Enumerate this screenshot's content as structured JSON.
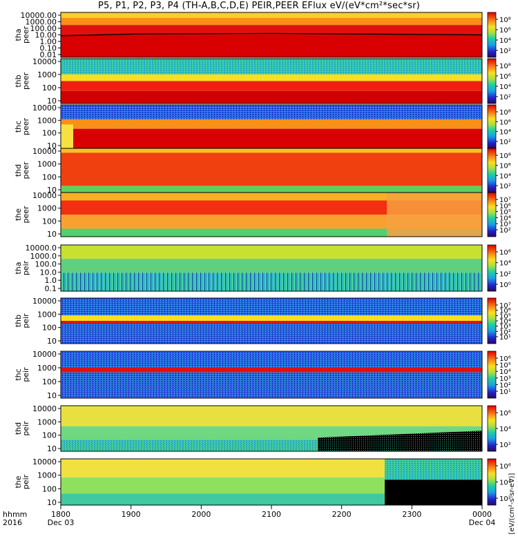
{
  "title": "P5, P1, P2, P3, P4 (TH-A,B,C,D,E) PEIR,PEER EFlux eV/(eV*cm²*sec*sr)",
  "time_axis": {
    "row_label_top": "hhmm",
    "row_label_bottom": "2016",
    "ticks": [
      "1800",
      "1900",
      "2000",
      "2100",
      "2200",
      "2300",
      "0000"
    ],
    "date_labels": [
      "Dec 03",
      "Dec 04"
    ]
  },
  "colorbar_unit": "[eV/(cm²-s-sr-eV)]",
  "chart_data": [
    {
      "type": "heatmap",
      "ylabel": [
        "tha",
        "peer"
      ],
      "yticks": [
        "10000.00",
        "1000.00",
        "100.00",
        "10.00",
        "1.00",
        "0.10",
        "0.01"
      ],
      "colorbar_ticks": [
        "10⁸",
        "10⁶",
        "10⁴",
        "10²"
      ]
    },
    {
      "type": "heatmap",
      "ylabel": [
        "thb",
        "peer"
      ],
      "yticks": [
        "10000",
        "1000",
        "100",
        "10"
      ],
      "colorbar_ticks": [
        "10⁸",
        "10⁶",
        "10⁴",
        "10²"
      ]
    },
    {
      "type": "heatmap",
      "ylabel": [
        "thc",
        "peer"
      ],
      "yticks": [
        "10000",
        "1000",
        "100",
        "10"
      ],
      "colorbar_ticks": [
        "10⁸",
        "10⁶",
        "10⁴",
        "10²"
      ]
    },
    {
      "type": "heatmap",
      "ylabel": [
        "thd",
        "peer"
      ],
      "yticks": [
        "10000",
        "1000",
        "100",
        "10"
      ],
      "colorbar_ticks": [
        "10⁸",
        "10⁶",
        "10⁴",
        "10²"
      ]
    },
    {
      "type": "heatmap",
      "ylabel": [
        "the",
        "peer"
      ],
      "yticks": [
        "10000",
        "1000",
        "100",
        "10"
      ],
      "colorbar_ticks": [
        "10⁷",
        "10⁶",
        "10⁵",
        "10⁴",
        "10³",
        "10²"
      ]
    },
    {
      "type": "heatmap",
      "ylabel": [
        "tha",
        "peir"
      ],
      "yticks": [
        "10000.0",
        "1000.0",
        "100.0",
        "10.0",
        "1.0",
        "0.1"
      ],
      "colorbar_ticks": [
        "10⁶",
        "10⁴",
        "10²",
        "10⁰"
      ]
    },
    {
      "type": "heatmap",
      "ylabel": [
        "thb",
        "peir"
      ],
      "yticks": [
        "10000",
        "1000",
        "100",
        "10"
      ],
      "colorbar_ticks": [
        "10⁷",
        "10⁶",
        "10⁵",
        "10⁴",
        "10³",
        "10²",
        "10¹"
      ]
    },
    {
      "type": "heatmap",
      "ylabel": [
        "thc",
        "peir"
      ],
      "yticks": [
        "10000",
        "1000",
        "100",
        "10"
      ],
      "colorbar_ticks": [
        "10⁶",
        "10⁵",
        "10⁴",
        "10³",
        "10²",
        "10¹"
      ]
    },
    {
      "type": "heatmap",
      "ylabel": [
        "thd",
        "peir"
      ],
      "yticks": [
        "10000",
        "1000",
        "100",
        "10"
      ],
      "colorbar_ticks": [
        "10⁶",
        "10⁴",
        "10²"
      ]
    },
    {
      "type": "heatmap",
      "ylabel": [
        "the",
        "peir"
      ],
      "yticks": [
        "10000",
        "1000",
        "100",
        "10"
      ],
      "colorbar_ticks": [
        "10⁶",
        "10⁴",
        "10²"
      ]
    }
  ]
}
